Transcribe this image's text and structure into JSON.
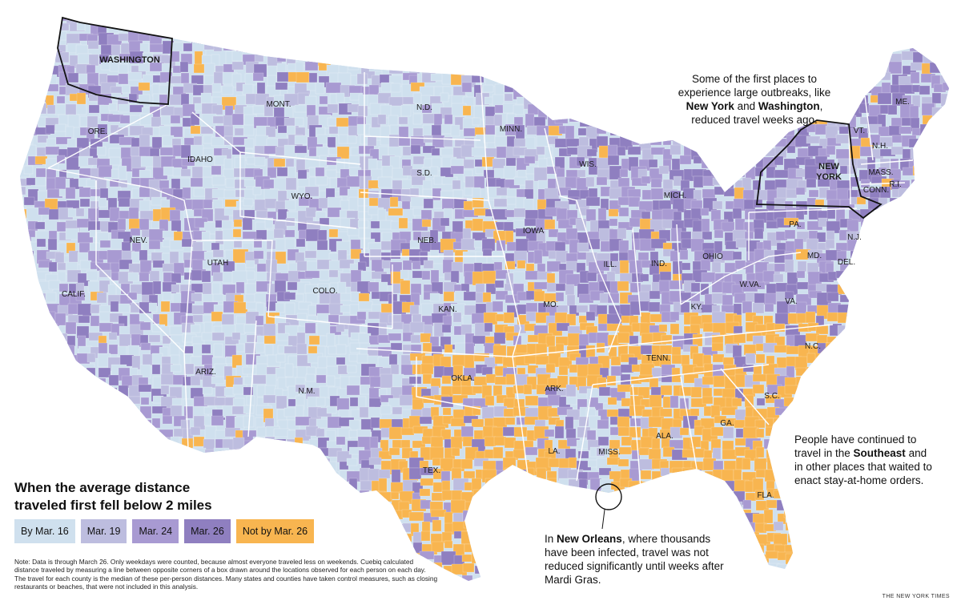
{
  "colors": {
    "by_mar16": "#cfe0ee",
    "mar19": "#bdbddf",
    "mar24": "#a89ad2",
    "mar26": "#8f7fc0",
    "not_by_mar26": "#f8b550",
    "state_border": "#ffffff",
    "outline_highlight": "#111111"
  },
  "states": [
    {
      "key": "wash",
      "label": "WASHINGTON",
      "emphasis": true
    },
    {
      "key": "mont",
      "label": "MONT."
    },
    {
      "key": "nd",
      "label": "N.D."
    },
    {
      "key": "minn",
      "label": "MINN."
    },
    {
      "key": "ore",
      "label": "ORE."
    },
    {
      "key": "idaho",
      "label": "IDAHO"
    },
    {
      "key": "wyo",
      "label": "WYO."
    },
    {
      "key": "sd",
      "label": "S.D."
    },
    {
      "key": "wis",
      "label": "WIS."
    },
    {
      "key": "mich",
      "label": "MICH."
    },
    {
      "key": "me",
      "label": "ME."
    },
    {
      "key": "vt",
      "label": "VT."
    },
    {
      "key": "nh",
      "label": "N.H."
    },
    {
      "key": "ny",
      "label": "NEW YORK",
      "emphasis": true
    },
    {
      "key": "mass",
      "label": "MASS."
    },
    {
      "key": "conn",
      "label": "CONN."
    },
    {
      "key": "ri",
      "label": "R.I."
    },
    {
      "key": "nev",
      "label": "NEV."
    },
    {
      "key": "utah",
      "label": "UTAH"
    },
    {
      "key": "colo",
      "label": "COLO."
    },
    {
      "key": "neb",
      "label": "NEB."
    },
    {
      "key": "iowa",
      "label": "IOWA"
    },
    {
      "key": "ill",
      "label": "ILL."
    },
    {
      "key": "ind",
      "label": "IND."
    },
    {
      "key": "ohio",
      "label": "OHIO"
    },
    {
      "key": "pa",
      "label": "PA."
    },
    {
      "key": "nj",
      "label": "N.J."
    },
    {
      "key": "md",
      "label": "MD."
    },
    {
      "key": "del",
      "label": "DEL."
    },
    {
      "key": "wva",
      "label": "W.VA."
    },
    {
      "key": "va",
      "label": "VA."
    },
    {
      "key": "calif",
      "label": "CALIF."
    },
    {
      "key": "kan",
      "label": "KAN."
    },
    {
      "key": "mo",
      "label": "MO."
    },
    {
      "key": "ky",
      "label": "KY."
    },
    {
      "key": "tenn",
      "label": "TENN."
    },
    {
      "key": "nc",
      "label": "N.C."
    },
    {
      "key": "okla",
      "label": "OKLA."
    },
    {
      "key": "ark",
      "label": "ARK."
    },
    {
      "key": "ariz",
      "label": "ARIZ."
    },
    {
      "key": "nm",
      "label": "N.M."
    },
    {
      "key": "sc",
      "label": "S.C."
    },
    {
      "key": "ga",
      "label": "GA."
    },
    {
      "key": "ala",
      "label": "ALA."
    },
    {
      "key": "miss",
      "label": "MISS."
    },
    {
      "key": "la",
      "label": "LA."
    },
    {
      "key": "tex",
      "label": "TEX."
    },
    {
      "key": "fla",
      "label": "FLA."
    }
  ],
  "annotations": {
    "east": [
      {
        "t": "Some of the first places to experience large outbreaks, like "
      },
      {
        "t": "New York",
        "b": true
      },
      {
        "t": " and "
      },
      {
        "t": "Washington",
        "b": true
      },
      {
        "t": ", reduced travel weeks ago."
      }
    ],
    "southeast": [
      {
        "t": "People have continued to travel in the "
      },
      {
        "t": "Southeast",
        "b": true
      },
      {
        "t": " and in other places that waited to enact stay-at-home orders."
      }
    ],
    "new_orleans": [
      {
        "t": "In "
      },
      {
        "t": "New Orleans",
        "b": true
      },
      {
        "t": ", where thousands have been infected, travel was not reduced significantly until weeks after Mardi Gras."
      }
    ]
  },
  "legend": {
    "title": "When the average distance traveled first fell below 2 miles",
    "items": [
      {
        "label": "By Mar. 16",
        "color_key": "by_mar16"
      },
      {
        "label": "Mar. 19",
        "color_key": "mar19"
      },
      {
        "label": "Mar. 24",
        "color_key": "mar24"
      },
      {
        "label": "Mar. 26",
        "color_key": "mar26"
      },
      {
        "label": "Not by Mar. 26",
        "color_key": "not_by_mar26"
      }
    ]
  },
  "note": "Note: Data is through March 26. Only weekdays were counted, because almost everyone traveled less on weekends. Cuebiq calculated distance traveled by measuring a line between opposite corners of a box drawn around the locations observed for each person on each day. The travel for each county is the median of these per-person distances. Many states and counties have taken control measures, such as closing restaurants or beaches, that were not included in this analysis.",
  "credit": "THE NEW YORK TIMES"
}
